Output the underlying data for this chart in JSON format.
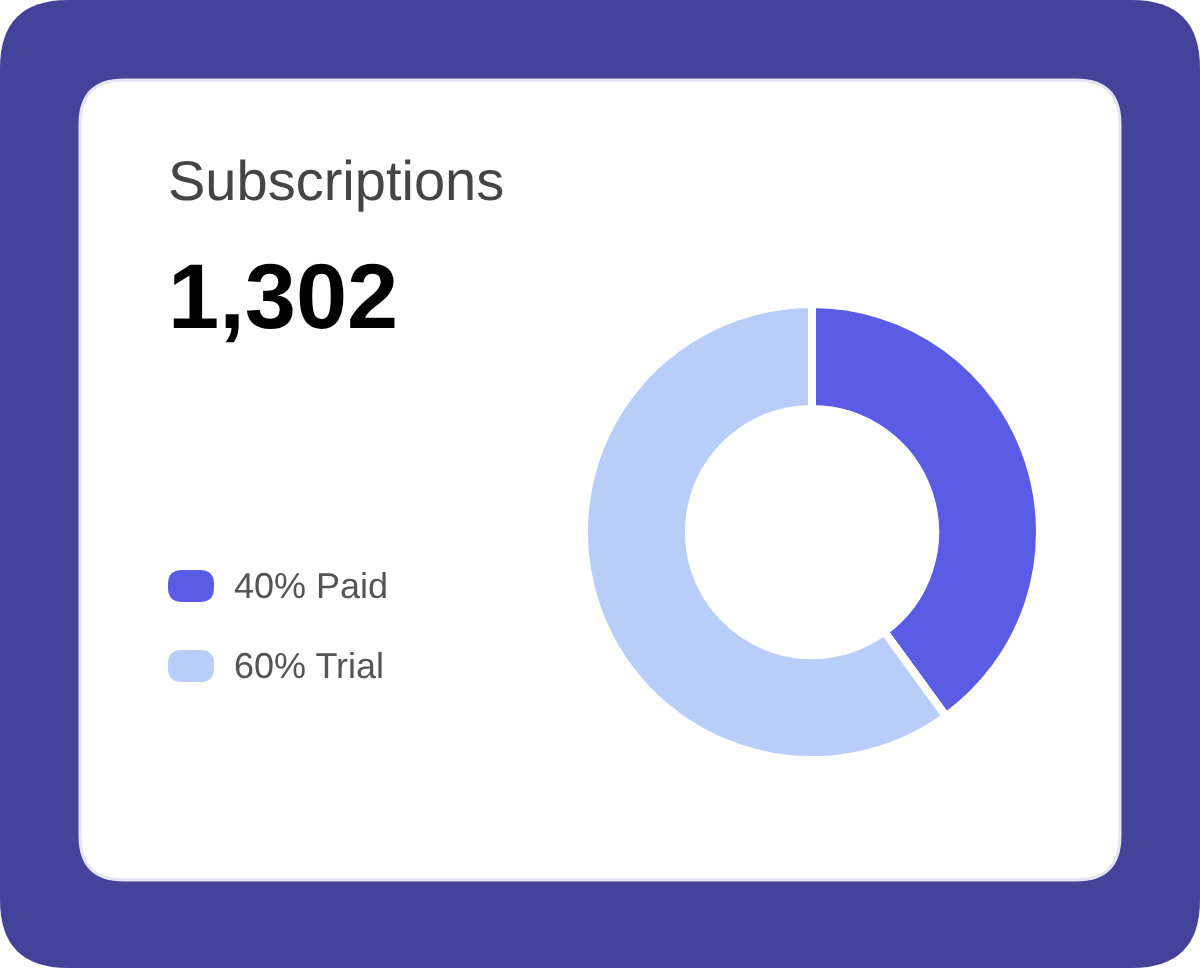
{
  "chart_data": {
    "type": "donut",
    "title": "Subscriptions",
    "annotations": [
      "1,302"
    ],
    "categories": [
      "Paid",
      "Trial"
    ],
    "values": [
      40,
      60
    ],
    "colors": [
      "#5b5ce6",
      "#b8cdf8"
    ],
    "value_labels": [
      "40%",
      "60%"
    ],
    "legend": "left"
  }
}
